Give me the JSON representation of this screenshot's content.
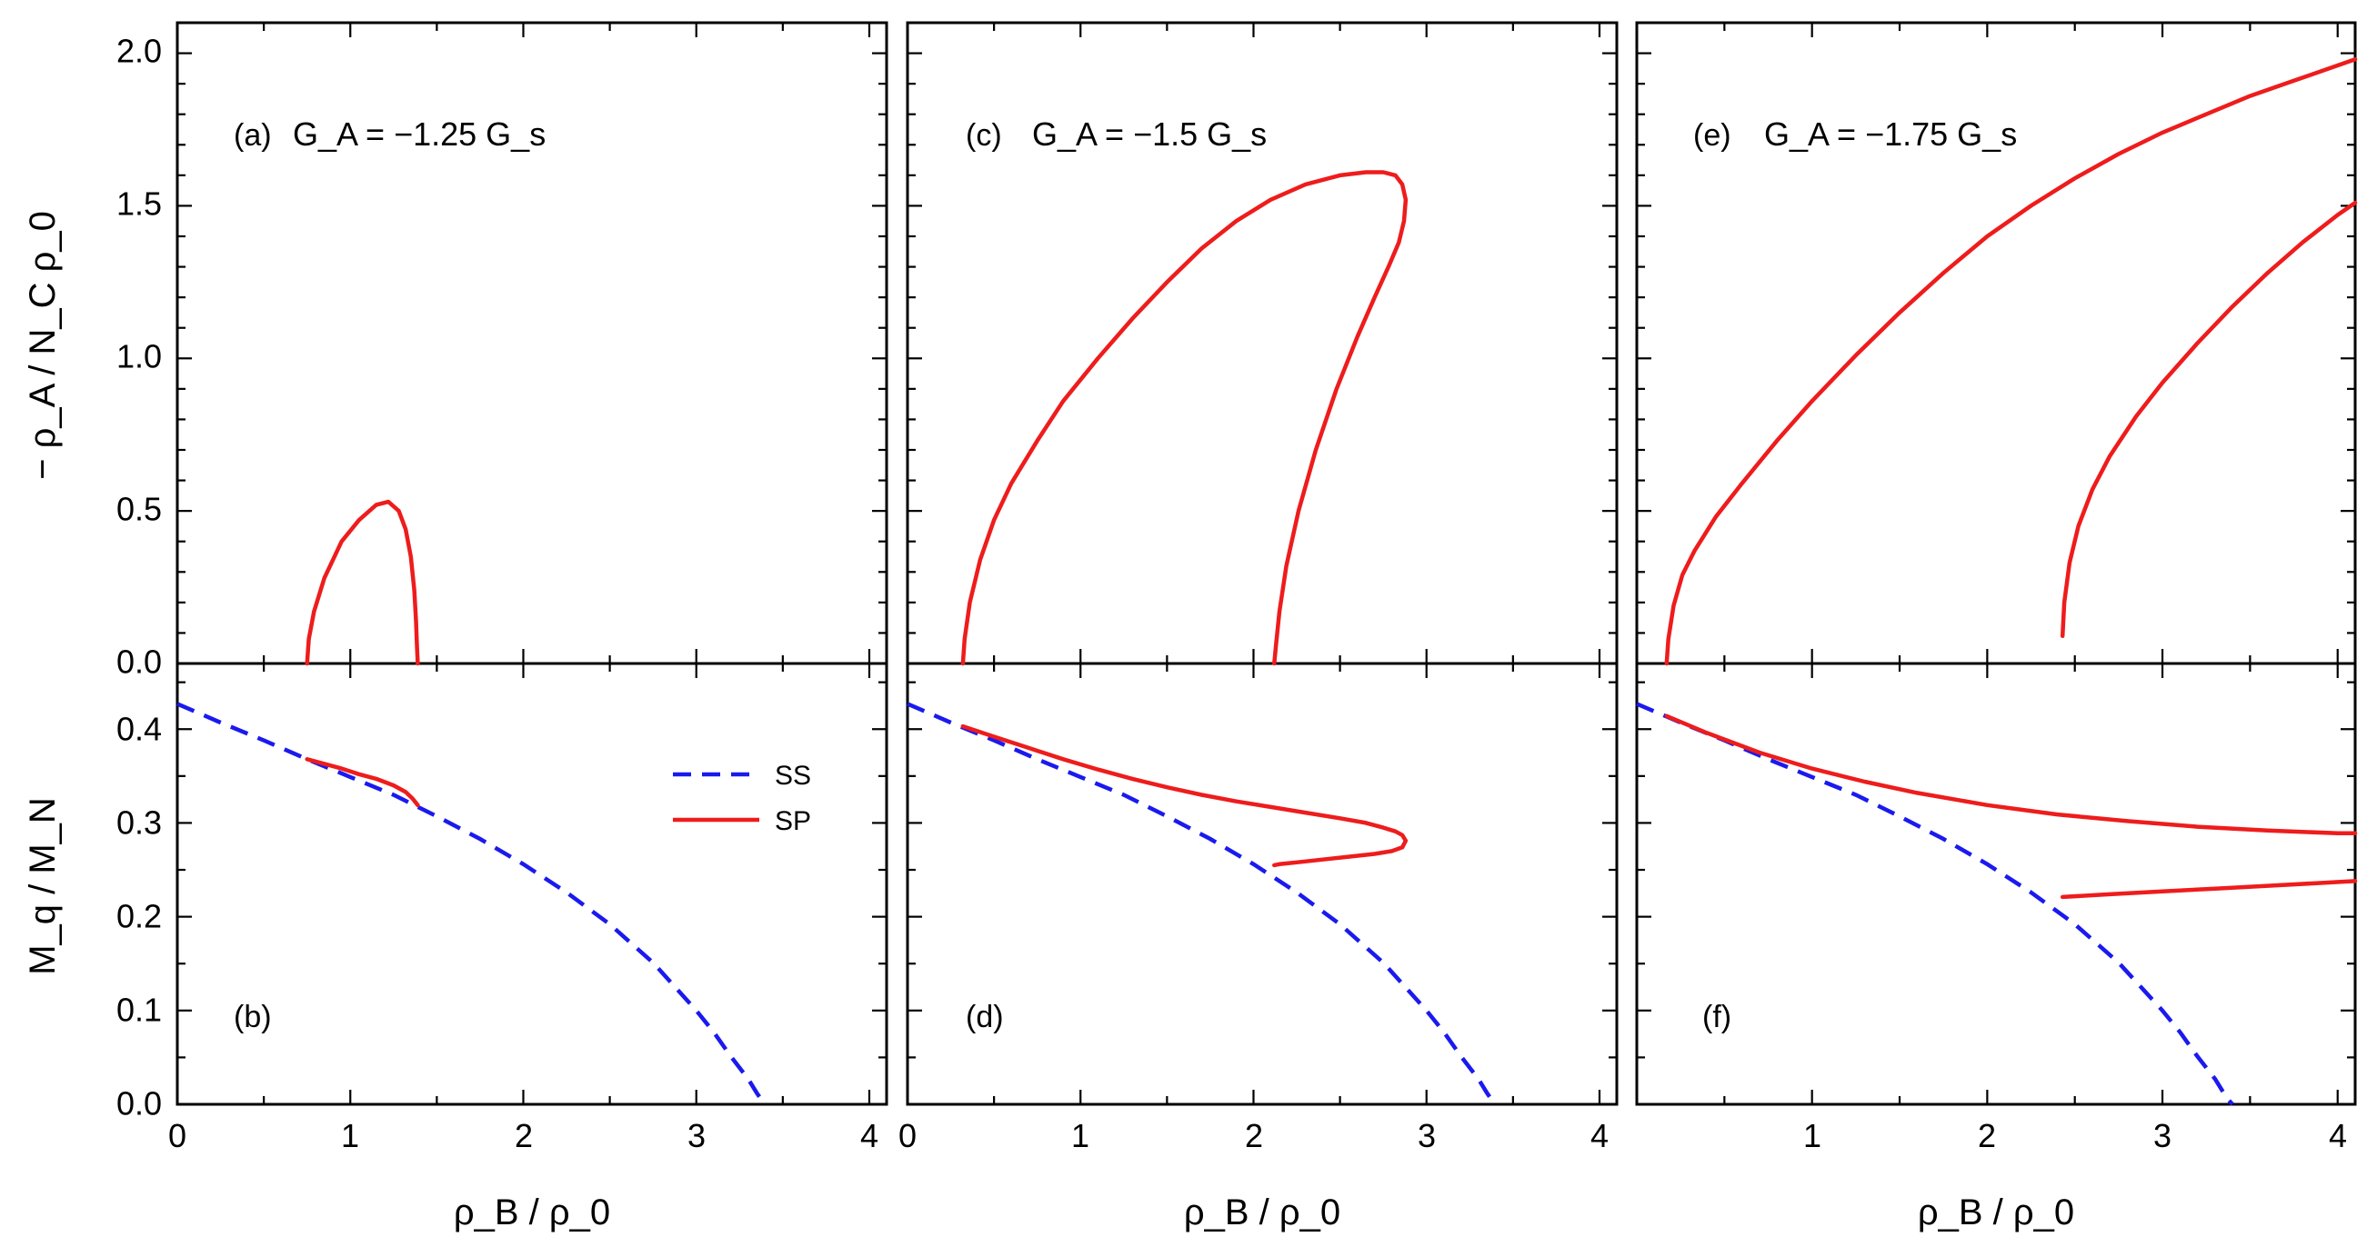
{
  "figure": {
    "x_axis_title": "ρ_B / ρ_0",
    "top_y_axis_title": "− ρ_A / N_C ρ_0",
    "bottom_y_axis_title": "M_q / M_N",
    "x_ticks": [
      "0",
      "1",
      "2",
      "3",
      "4"
    ],
    "top_y_ticks": [
      "0.0",
      "0.5",
      "1.0",
      "1.5",
      "2.0"
    ],
    "bottom_y_ticks": [
      "0.0",
      "0.1",
      "0.2",
      "0.3",
      "0.4"
    ]
  },
  "legend": {
    "ss_label": "SS",
    "sp_label": "SP",
    "ss_color": "#1a1aee",
    "sp_color": "#ee1c1c"
  },
  "chart_data": [
    {
      "type": "line",
      "panel": "(a)",
      "title_prefix": "G_A = ",
      "ga_value": "−1.25",
      "title_suffix": "G_s",
      "xlabel": "ρ_B / ρ_0",
      "ylabel": "− ρ_A / N_C ρ_0",
      "xlim": [
        0,
        4.1
      ],
      "ylim": [
        0,
        2.1
      ],
      "series": [
        {
          "name": "SP",
          "x": [
            0.75,
            0.76,
            0.79,
            0.85,
            0.95,
            1.05,
            1.15,
            1.22,
            1.28,
            1.32,
            1.35,
            1.37,
            1.38,
            1.385,
            1.39
          ],
          "y": [
            0.0,
            0.08,
            0.17,
            0.28,
            0.4,
            0.47,
            0.52,
            0.53,
            0.5,
            0.44,
            0.35,
            0.24,
            0.14,
            0.06,
            0.0
          ]
        }
      ]
    },
    {
      "type": "line",
      "panel": "(b)",
      "xlabel": "ρ_B / ρ_0",
      "ylabel": "M_q / M_N",
      "xlim": [
        0,
        4.1
      ],
      "ylim": [
        0,
        0.47
      ],
      "series": [
        {
          "name": "SS",
          "x": [
            0.0,
            0.25,
            0.5,
            0.75,
            1.0,
            1.25,
            1.5,
            1.75,
            2.0,
            2.25,
            2.5,
            2.75,
            3.0,
            3.1,
            3.2,
            3.3,
            3.35,
            3.38,
            3.4
          ],
          "y": [
            0.427,
            0.407,
            0.388,
            0.368,
            0.349,
            0.33,
            0.307,
            0.283,
            0.256,
            0.226,
            0.192,
            0.151,
            0.1,
            0.077,
            0.051,
            0.027,
            0.012,
            0.004,
            0.0
          ]
        },
        {
          "name": "SP",
          "x": [
            0.75,
            0.85,
            0.95,
            1.05,
            1.15,
            1.25,
            1.32,
            1.36,
            1.39
          ],
          "y": [
            0.368,
            0.363,
            0.358,
            0.352,
            0.347,
            0.34,
            0.333,
            0.326,
            0.319
          ]
        }
      ]
    },
    {
      "type": "line",
      "panel": "(c)",
      "title_prefix": "G_A = ",
      "ga_value": "−1.5",
      "title_suffix": "G_s",
      "xlabel": "ρ_B / ρ_0",
      "ylabel": "− ρ_A / N_C ρ_0",
      "xlim": [
        0,
        4.1
      ],
      "ylim": [
        0,
        2.1
      ],
      "series": [
        {
          "name": "SP",
          "x": [
            0.32,
            0.33,
            0.36,
            0.42,
            0.5,
            0.6,
            0.75,
            0.9,
            1.1,
            1.3,
            1.5,
            1.7,
            1.9,
            2.1,
            2.3,
            2.5,
            2.65,
            2.75,
            2.82,
            2.86,
            2.88,
            2.87,
            2.84,
            2.78,
            2.7,
            2.6,
            2.48,
            2.36,
            2.26,
            2.19,
            2.15,
            2.13,
            2.12
          ],
          "y": [
            0.0,
            0.08,
            0.2,
            0.34,
            0.47,
            0.59,
            0.73,
            0.86,
            1.0,
            1.13,
            1.25,
            1.36,
            1.45,
            1.52,
            1.57,
            1.6,
            1.61,
            1.61,
            1.6,
            1.57,
            1.52,
            1.45,
            1.38,
            1.3,
            1.2,
            1.07,
            0.9,
            0.7,
            0.5,
            0.32,
            0.17,
            0.06,
            0.0
          ]
        }
      ]
    },
    {
      "type": "line",
      "panel": "(d)",
      "xlabel": "ρ_B / ρ_0",
      "ylabel": "M_q / M_N",
      "xlim": [
        0,
        4.1
      ],
      "ylim": [
        0,
        0.47
      ],
      "series": [
        {
          "name": "SS",
          "x": [
            0.0,
            0.25,
            0.5,
            0.75,
            1.0,
            1.25,
            1.5,
            1.75,
            2.0,
            2.25,
            2.5,
            2.75,
            3.0,
            3.1,
            3.2,
            3.3,
            3.35,
            3.38,
            3.4
          ],
          "y": [
            0.427,
            0.407,
            0.388,
            0.368,
            0.349,
            0.33,
            0.307,
            0.283,
            0.256,
            0.226,
            0.192,
            0.151,
            0.1,
            0.077,
            0.051,
            0.027,
            0.012,
            0.004,
            0.0
          ]
        },
        {
          "name": "SP",
          "x": [
            0.32,
            0.5,
            0.7,
            0.9,
            1.1,
            1.3,
            1.5,
            1.7,
            1.9,
            2.1,
            2.3,
            2.5,
            2.65,
            2.75,
            2.82,
            2.86,
            2.88,
            2.86,
            2.8,
            2.7,
            2.55,
            2.4,
            2.25,
            2.15,
            2.12
          ],
          "y": [
            0.403,
            0.392,
            0.38,
            0.368,
            0.357,
            0.347,
            0.338,
            0.33,
            0.323,
            0.317,
            0.311,
            0.305,
            0.3,
            0.295,
            0.291,
            0.287,
            0.281,
            0.274,
            0.27,
            0.267,
            0.264,
            0.261,
            0.258,
            0.256,
            0.255
          ]
        }
      ]
    },
    {
      "type": "line",
      "panel": "(e)",
      "title_prefix": "G_A = ",
      "ga_value": "−1.75",
      "title_suffix": "G_s",
      "xlabel": "ρ_B / ρ_0",
      "ylabel": "− ρ_A / N_C ρ_0",
      "xlim": [
        0,
        4.1
      ],
      "ylim": [
        0,
        2.1
      ],
      "series": [
        {
          "name": "SP",
          "x": [
            0.17,
            0.18,
            0.21,
            0.26,
            0.33,
            0.45,
            0.6,
            0.8,
            1.0,
            1.25,
            1.5,
            1.75,
            2.0,
            2.25,
            2.5,
            2.75,
            3.0,
            3.25,
            3.5,
            3.75,
            4.0,
            4.1
          ],
          "y": [
            0.0,
            0.08,
            0.19,
            0.29,
            0.37,
            0.48,
            0.59,
            0.73,
            0.86,
            1.01,
            1.15,
            1.28,
            1.4,
            1.5,
            1.59,
            1.67,
            1.74,
            1.8,
            1.86,
            1.91,
            1.96,
            1.98
          ]
        },
        {
          "name": "SP branch",
          "x": [
            2.43,
            2.44,
            2.47,
            2.52,
            2.6,
            2.7,
            2.85,
            3.0,
            3.2,
            3.4,
            3.6,
            3.8,
            4.0,
            4.1
          ],
          "y": [
            0.09,
            0.2,
            0.33,
            0.45,
            0.57,
            0.68,
            0.81,
            0.92,
            1.05,
            1.17,
            1.28,
            1.38,
            1.47,
            1.51
          ]
        }
      ]
    },
    {
      "type": "line",
      "panel": "(f)",
      "xlabel": "ρ_B / ρ_0",
      "ylabel": "M_q / M_N",
      "xlim": [
        0,
        4.1
      ],
      "ylim": [
        0,
        0.47
      ],
      "series": [
        {
          "name": "SS",
          "x": [
            0.0,
            0.25,
            0.5,
            0.75,
            1.0,
            1.25,
            1.5,
            1.75,
            2.0,
            2.25,
            2.5,
            2.75,
            3.0,
            3.1,
            3.2,
            3.3,
            3.35,
            3.38,
            3.4
          ],
          "y": [
            0.427,
            0.407,
            0.388,
            0.368,
            0.349,
            0.33,
            0.307,
            0.283,
            0.256,
            0.226,
            0.192,
            0.151,
            0.1,
            0.077,
            0.051,
            0.027,
            0.012,
            0.004,
            0.0
          ]
        },
        {
          "name": "SP",
          "x": [
            0.17,
            0.4,
            0.7,
            1.0,
            1.3,
            1.6,
            2.0,
            2.4,
            2.8,
            3.2,
            3.6,
            4.0,
            4.1
          ],
          "y": [
            0.414,
            0.396,
            0.375,
            0.358,
            0.344,
            0.332,
            0.319,
            0.309,
            0.302,
            0.296,
            0.292,
            0.289,
            0.289
          ]
        },
        {
          "name": "SP branch",
          "x": [
            2.43,
            2.7,
            3.0,
            3.3,
            3.6,
            3.9,
            4.1
          ],
          "y": [
            0.221,
            0.224,
            0.227,
            0.23,
            0.233,
            0.236,
            0.238
          ]
        }
      ]
    }
  ]
}
